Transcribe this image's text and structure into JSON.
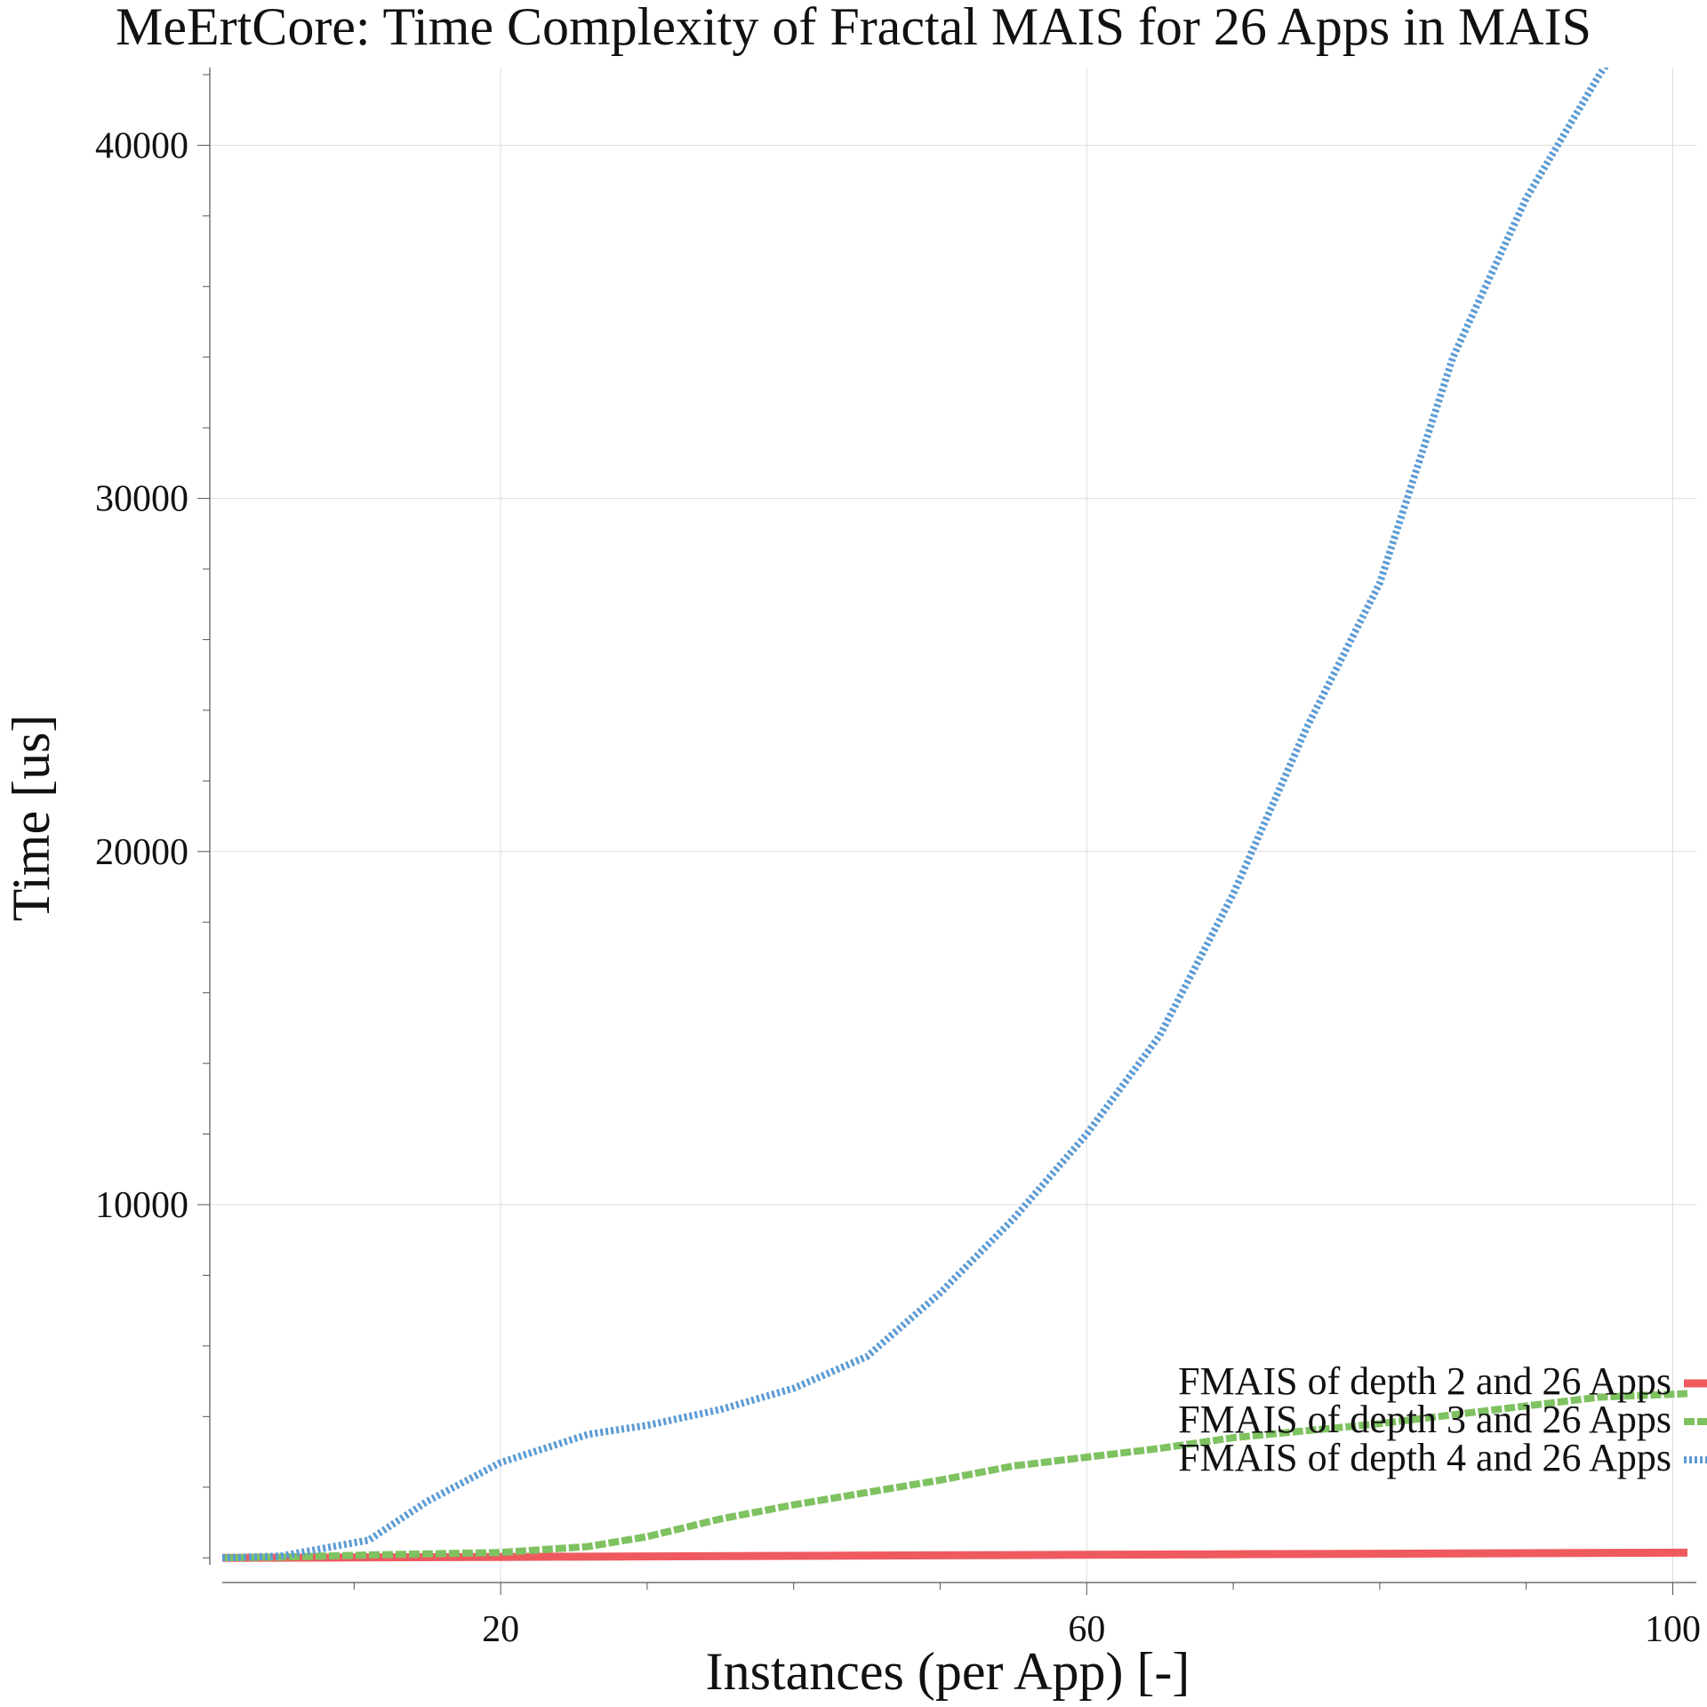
{
  "chart_data": {
    "type": "line",
    "title": "MeErtCore: Time Complexity of Fractal MAIS for 26 Apps in MAIS",
    "xlabel": "Instances (per App) [-]",
    "ylabel": "Time [us]",
    "xlim": [
      1,
      101
    ],
    "ylim": [
      -700,
      42200
    ],
    "x_ticks": [
      20,
      60,
      100
    ],
    "x_tick_labels": [
      "20",
      "60",
      "100"
    ],
    "y_ticks": [
      10000,
      20000,
      30000,
      40000
    ],
    "y_tick_labels": [
      "10000",
      "20000",
      "30000",
      "40000"
    ],
    "grid": true,
    "legend": "bottom-right",
    "series": [
      {
        "name": "FMAIS of depth 2 and 26 Apps",
        "color": "#ef5a5f",
        "style": "solid",
        "points": [
          [
            1,
            0
          ],
          [
            10,
            10
          ],
          [
            20,
            25
          ],
          [
            30,
            40
          ],
          [
            40,
            55
          ],
          [
            50,
            70
          ],
          [
            60,
            85
          ],
          [
            70,
            100
          ],
          [
            80,
            115
          ],
          [
            90,
            130
          ],
          [
            101,
            145
          ]
        ]
      },
      {
        "name": "FMAIS of depth 3 and 26 Apps",
        "color": "#7fc261",
        "style": "dashed",
        "points": [
          [
            1,
            0
          ],
          [
            5,
            20
          ],
          [
            11,
            80
          ],
          [
            20,
            150
          ],
          [
            26,
            320
          ],
          [
            30,
            600
          ],
          [
            35,
            1100
          ],
          [
            40,
            1500
          ],
          [
            45,
            1850
          ],
          [
            50,
            2200
          ],
          [
            55,
            2600
          ],
          [
            60,
            2850
          ],
          [
            65,
            3100
          ],
          [
            70,
            3400
          ],
          [
            75,
            3600
          ],
          [
            80,
            3800
          ],
          [
            85,
            4050
          ],
          [
            90,
            4300
          ],
          [
            95,
            4550
          ],
          [
            101,
            4650
          ]
        ]
      },
      {
        "name": "FMAIS of depth 4 and 26 Apps",
        "color": "#5b9bd5",
        "style": "dotted",
        "points": [
          [
            1,
            0
          ],
          [
            5,
            50
          ],
          [
            11,
            500
          ],
          [
            15,
            1600
          ],
          [
            20,
            2700
          ],
          [
            26,
            3500
          ],
          [
            30,
            3750
          ],
          [
            35,
            4200
          ],
          [
            40,
            4800
          ],
          [
            45,
            5700
          ],
          [
            50,
            7500
          ],
          [
            55,
            9600
          ],
          [
            60,
            12000
          ],
          [
            65,
            14800
          ],
          [
            70,
            18800
          ],
          [
            75,
            23500
          ],
          [
            80,
            27600
          ],
          [
            85,
            34000
          ],
          [
            90,
            38500
          ],
          [
            95,
            42000
          ],
          [
            101,
            45500
          ]
        ]
      }
    ]
  }
}
